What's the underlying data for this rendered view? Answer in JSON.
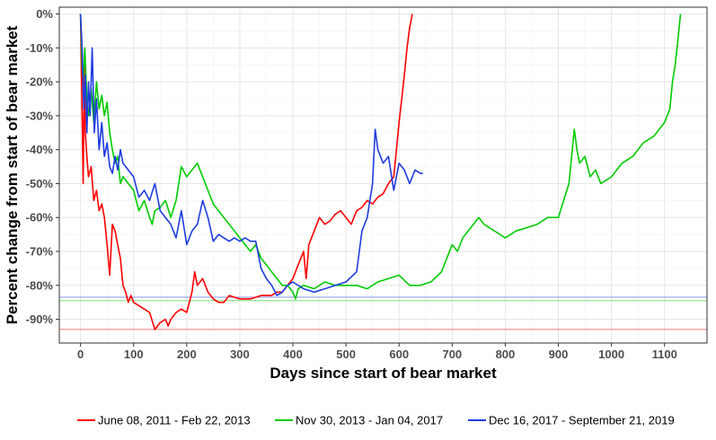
{
  "chart_data": {
    "type": "line",
    "xlabel": "Days since start of bear market",
    "ylabel": "Percent change from start of bear market",
    "xlim": [
      -40,
      1180
    ],
    "ylim": [
      -97,
      2
    ],
    "x_ticks": [
      0,
      100,
      200,
      300,
      400,
      500,
      600,
      700,
      800,
      900,
      1000,
      1100
    ],
    "y_ticks": [
      0,
      -10,
      -20,
      -30,
      -40,
      -50,
      -60,
      -70,
      -80,
      -90
    ],
    "y_tick_labels": [
      "0%",
      "-10%",
      "-20%",
      "-30%",
      "-40%",
      "-50%",
      "-60%",
      "-70%",
      "-80%",
      "-90%"
    ],
    "grid": true,
    "legend_position": "bottom",
    "series": [
      {
        "name": "June 08, 2011 - Feb 22, 2013",
        "color": "#ff0000",
        "minimum_line": -93,
        "x": [
          0,
          3,
          5,
          7,
          9,
          12,
          15,
          20,
          25,
          30,
          35,
          40,
          45,
          50,
          55,
          60,
          65,
          70,
          75,
          80,
          85,
          90,
          95,
          100,
          110,
          120,
          130,
          140,
          150,
          160,
          165,
          170,
          180,
          190,
          200,
          210,
          215,
          220,
          230,
          240,
          250,
          260,
          270,
          280,
          300,
          320,
          340,
          360,
          370,
          380,
          390,
          400,
          410,
          415,
          420,
          425,
          430,
          440,
          450,
          460,
          470,
          480,
          490,
          500,
          510,
          520,
          530,
          540,
          550,
          560,
          570,
          580,
          590,
          595,
          600,
          605,
          610,
          615,
          620,
          625
        ],
        "y": [
          0,
          -30,
          -50,
          -15,
          -35,
          -42,
          -48,
          -45,
          -55,
          -52,
          -58,
          -56,
          -60,
          -68,
          -77,
          -62,
          -64,
          -68,
          -72,
          -80,
          -82,
          -85,
          -83,
          -85,
          -86,
          -87,
          -88,
          -93,
          -91,
          -90,
          -92,
          -90,
          -88,
          -87,
          -88,
          -82,
          -76,
          -80,
          -78,
          -82,
          -84,
          -85,
          -85,
          -83,
          -84,
          -84,
          -83,
          -83,
          -82,
          -82,
          -80,
          -78,
          -74,
          -72,
          -70,
          -78,
          -68,
          -64,
          -60,
          -62,
          -61,
          -59,
          -58,
          -60,
          -62,
          -58,
          -57,
          -55,
          -56,
          -54,
          -53,
          -50,
          -48,
          -40,
          -32,
          -25,
          -18,
          -10,
          -4,
          0
        ]
      },
      {
        "name": "Nov 30, 2013 - Jan 04, 2017",
        "color": "#00cc00",
        "minimum_line": -84.5,
        "x": [
          0,
          3,
          5,
          8,
          12,
          15,
          20,
          25,
          30,
          35,
          40,
          45,
          50,
          55,
          60,
          65,
          70,
          75,
          80,
          90,
          100,
          110,
          120,
          130,
          135,
          140,
          150,
          160,
          170,
          180,
          190,
          200,
          210,
          220,
          230,
          240,
          250,
          260,
          270,
          280,
          290,
          300,
          310,
          320,
          330,
          340,
          350,
          360,
          370,
          380,
          390,
          400,
          405,
          410,
          420,
          440,
          460,
          480,
          500,
          520,
          540,
          560,
          580,
          600,
          620,
          640,
          660,
          680,
          700,
          710,
          720,
          730,
          740,
          750,
          760,
          780,
          800,
          820,
          840,
          860,
          880,
          900,
          910,
          920,
          925,
          930,
          935,
          940,
          950,
          960,
          970,
          980,
          1000,
          1020,
          1040,
          1060,
          1080,
          1100,
          1110,
          1115,
          1120,
          1125,
          1130
        ],
        "y": [
          0,
          -15,
          -20,
          -10,
          -25,
          -30,
          -22,
          -32,
          -20,
          -28,
          -24,
          -30,
          -26,
          -35,
          -40,
          -44,
          -42,
          -50,
          -48,
          -50,
          -52,
          -58,
          -55,
          -60,
          -62,
          -58,
          -57,
          -55,
          -60,
          -55,
          -45,
          -48,
          -46,
          -44,
          -48,
          -52,
          -56,
          -58,
          -60,
          -62,
          -64,
          -66,
          -68,
          -70,
          -68,
          -72,
          -74,
          -76,
          -78,
          -80,
          -80,
          -82,
          -84,
          -81,
          -80,
          -81,
          -79,
          -80,
          -80,
          -80,
          -81,
          -79,
          -78,
          -77,
          -80,
          -80,
          -79,
          -76,
          -68,
          -70,
          -66,
          -64,
          -62,
          -60,
          -62,
          -64,
          -66,
          -64,
          -63,
          -62,
          -60,
          -60,
          -55,
          -50,
          -42,
          -34,
          -40,
          -44,
          -42,
          -48,
          -46,
          -50,
          -48,
          -44,
          -42,
          -38,
          -36,
          -32,
          -28,
          -20,
          -15,
          -8,
          0
        ]
      },
      {
        "name": "Dec 16, 2017 - September 21, 2019",
        "color": "#1f3ce0",
        "minimum_line": -83.5,
        "x": [
          0,
          3,
          6,
          9,
          12,
          15,
          18,
          22,
          26,
          30,
          35,
          40,
          45,
          50,
          55,
          60,
          65,
          70,
          75,
          80,
          90,
          100,
          110,
          120,
          130,
          140,
          150,
          160,
          170,
          180,
          190,
          200,
          210,
          220,
          230,
          240,
          250,
          260,
          270,
          280,
          290,
          300,
          310,
          320,
          330,
          340,
          350,
          360,
          370,
          380,
          390,
          400,
          420,
          440,
          460,
          480,
          500,
          520,
          530,
          540,
          550,
          555,
          560,
          570,
          580,
          590,
          600,
          610,
          620,
          630,
          640,
          645
        ],
        "y": [
          0,
          -10,
          -28,
          -18,
          -35,
          -20,
          -30,
          -10,
          -35,
          -25,
          -40,
          -32,
          -42,
          -38,
          -45,
          -47,
          -42,
          -46,
          -40,
          -44,
          -46,
          -48,
          -54,
          -52,
          -55,
          -50,
          -58,
          -60,
          -62,
          -66,
          -58,
          -68,
          -64,
          -62,
          -55,
          -60,
          -67,
          -65,
          -66,
          -67,
          -66,
          -67,
          -66,
          -67,
          -67,
          -75,
          -78,
          -80,
          -83,
          -82,
          -80,
          -79,
          -81,
          -82,
          -81,
          -80,
          -79,
          -76,
          -64,
          -60,
          -50,
          -34,
          -40,
          -44,
          -42,
          -52,
          -44,
          -46,
          -50,
          -46,
          -47,
          -47
        ]
      }
    ]
  }
}
